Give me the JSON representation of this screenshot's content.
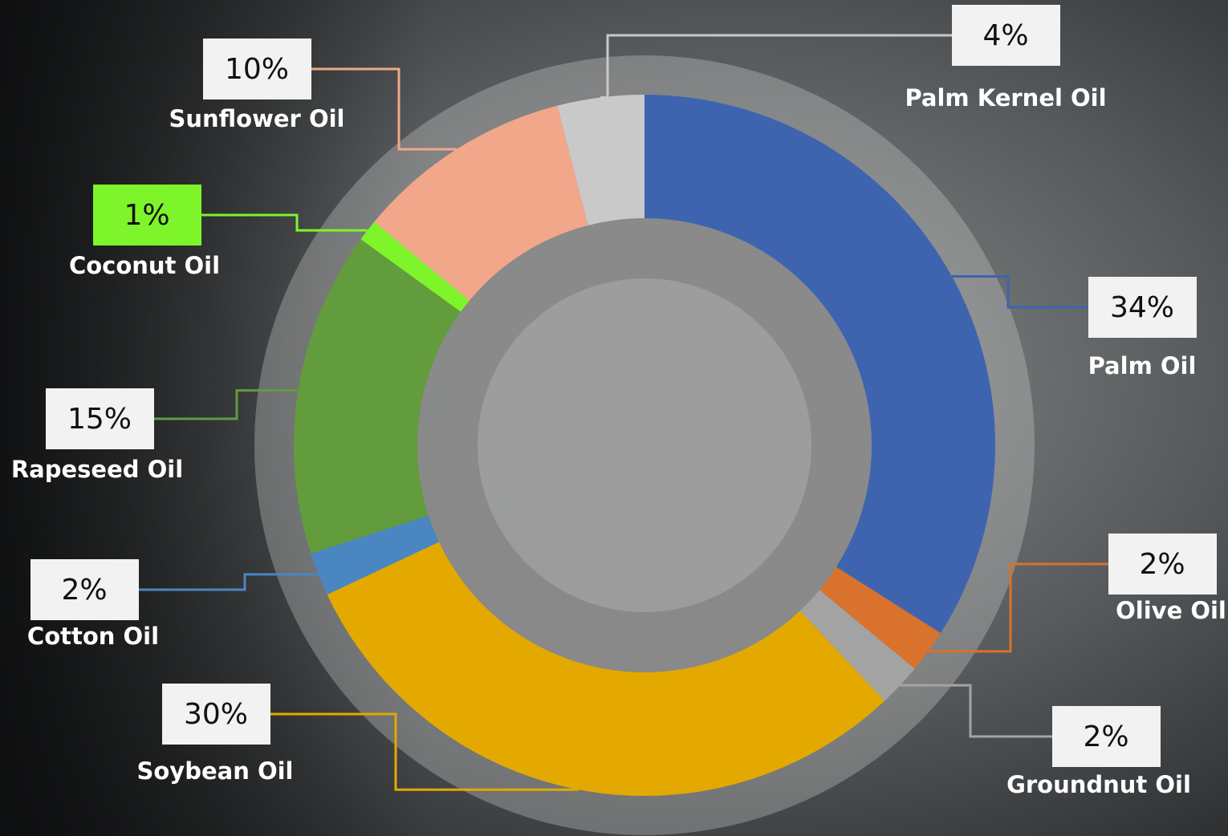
{
  "chart_data": {
    "type": "donut",
    "categories": [
      "Palm Oil",
      "Olive Oil",
      "Groundnut Oil",
      "Soybean Oil",
      "Cotton Oil",
      "Rapeseed Oil",
      "Coconut Oil",
      "Sunflower Oil",
      "Palm Kernel Oil"
    ],
    "values": [
      34,
      2,
      2,
      30,
      2,
      15,
      1,
      10,
      4
    ],
    "value_labels": [
      "34%",
      "2%",
      "2%",
      "30%",
      "2%",
      "15%",
      "1%",
      "10%",
      "4%"
    ],
    "colors": [
      "#3e64b0",
      "#d8722c",
      "#a3a3a3",
      "#e3a900",
      "#4a86c1",
      "#629c3c",
      "#7ef42b",
      "#f2a78b",
      "#c9c9c9"
    ]
  }
}
